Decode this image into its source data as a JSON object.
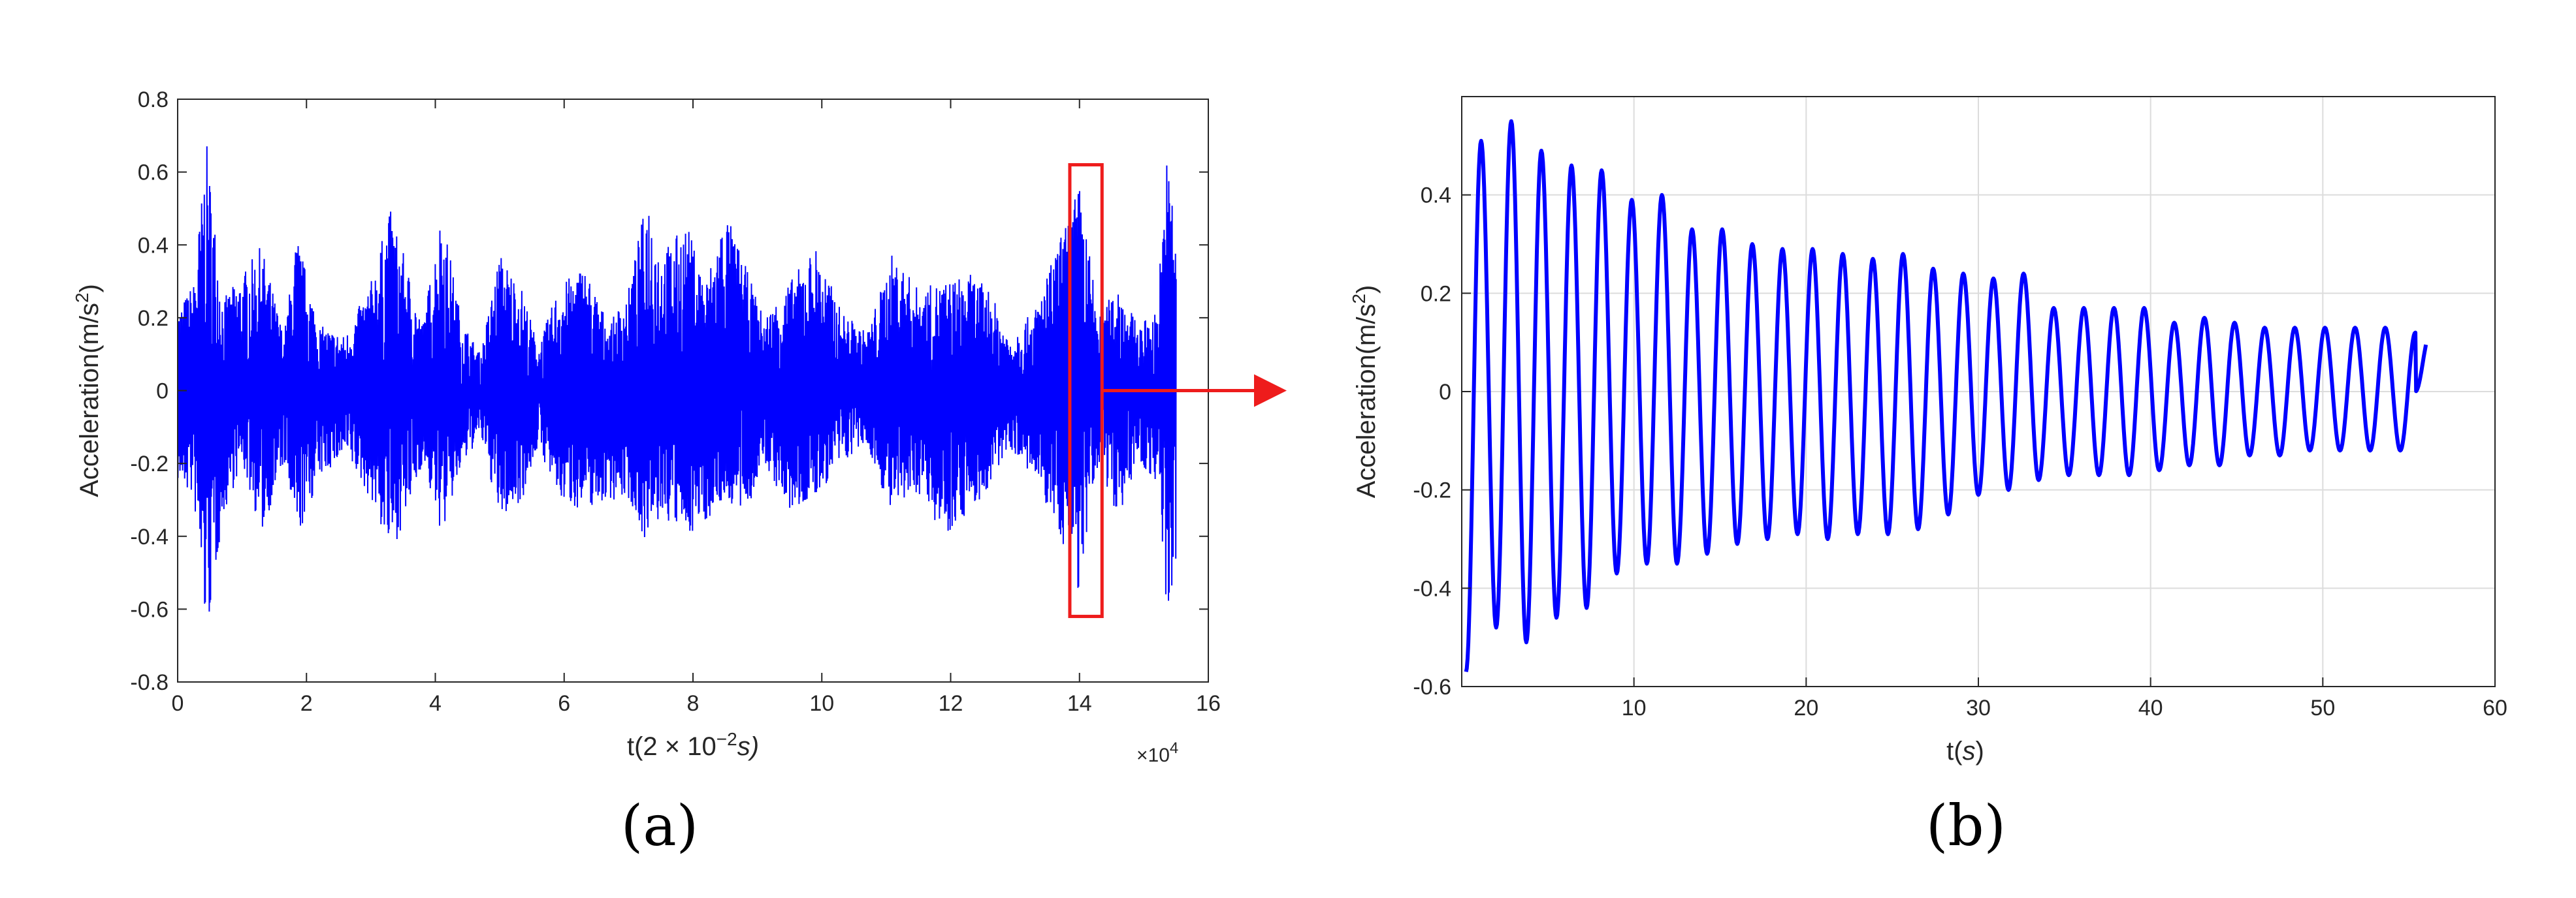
{
  "chart_data": [
    {
      "type": "line",
      "panel_label": "(a)",
      "xlabel": "t(2 × 10",
      "xlabel_exponent": "−2",
      "xlabel_suffix": "s)",
      "ylabel": "Acceleration(m/s",
      "ylabel_exponent": "2",
      "ylabel_suffix": ")",
      "x_multiplier": "×10",
      "x_multiplier_exponent": "4",
      "xlim": [
        0,
        16
      ],
      "ylim": [
        -0.8,
        0.8
      ],
      "xticks": [
        "0",
        "2",
        "4",
        "6",
        "8",
        "10",
        "12",
        "14",
        "16"
      ],
      "yticks": [
        "-0.8",
        "-0.6",
        "-0.4",
        "-0.2",
        "0",
        "0.2",
        "0.4",
        "0.6",
        "0.8"
      ],
      "grid": false,
      "series": [
        {
          "color": "#0000ff",
          "envelope": {
            "x": [
              0,
              0.25,
              0.45,
              0.7,
              1.0,
              1.3,
              1.65,
              1.85,
              2.2,
              2.6,
              3.0,
              3.3,
              3.55,
              3.8,
              4.1,
              4.4,
              4.7,
              5.0,
              5.35,
              5.6,
              5.9,
              6.3,
              6.7,
              7.0,
              7.3,
              7.5,
              7.9,
              8.2,
              8.5,
              8.8,
              9.1,
              9.5,
              9.9,
              10.3,
              10.7,
              11.1,
              11.5,
              11.9,
              12.3,
              12.6,
              12.9,
              13.3,
              13.7,
              14.0,
              14.3,
              14.6,
              14.9,
              15.2,
              15.35,
              15.5
            ],
            "upper": [
              0.22,
              0.3,
              0.68,
              0.25,
              0.32,
              0.4,
              0.15,
              0.43,
              0.18,
              0.15,
              0.3,
              0.5,
              0.35,
              0.18,
              0.5,
              0.2,
              0.1,
              0.38,
              0.28,
              0.12,
              0.28,
              0.35,
              0.18,
              0.28,
              0.55,
              0.38,
              0.46,
              0.3,
              0.5,
              0.35,
              0.2,
              0.3,
              0.4,
              0.22,
              0.16,
              0.38,
              0.28,
              0.3,
              0.32,
              0.28,
              0.15,
              0.22,
              0.42,
              0.57,
              0.2,
              0.3,
              0.18,
              0.22,
              0.64,
              0.5
            ],
            "lower": [
              -0.25,
              -0.3,
              -0.69,
              -0.35,
              -0.2,
              -0.4,
              -0.2,
              -0.42,
              -0.24,
              -0.18,
              -0.3,
              -0.45,
              -0.35,
              -0.2,
              -0.4,
              -0.22,
              -0.12,
              -0.36,
              -0.3,
              -0.15,
              -0.3,
              -0.33,
              -0.3,
              -0.3,
              -0.43,
              -0.35,
              -0.4,
              -0.36,
              -0.3,
              -0.35,
              -0.2,
              -0.34,
              -0.3,
              -0.2,
              -0.15,
              -0.35,
              -0.28,
              -0.4,
              -0.33,
              -0.28,
              -0.15,
              -0.25,
              -0.4,
              -0.56,
              -0.2,
              -0.35,
              -0.2,
              -0.25,
              -0.64,
              -0.5
            ]
          }
        }
      ],
      "highlight_box": {
        "x_range": [
          13.85,
          14.35
        ],
        "y_range": [
          -0.62,
          0.62
        ],
        "color": "#ee1c1c"
      }
    },
    {
      "type": "line",
      "panel_label": "(b)",
      "xlabel": "t(",
      "xlabel_var": "s",
      "xlabel_suffix": ")",
      "ylabel": "Acceleration(m/s",
      "ylabel_exponent": "2",
      "ylabel_suffix": ")",
      "xlim": [
        0,
        60
      ],
      "ylim": [
        -0.6,
        0.6
      ],
      "xticks": [
        "10",
        "20",
        "30",
        "40",
        "50",
        "60"
      ],
      "yticks": [
        "-0.6",
        "-0.4",
        "-0.2",
        "0",
        "0.2",
        "0.4"
      ],
      "grid": true,
      "series": [
        {
          "color": "#0000ff",
          "x_end": 56,
          "period": 1.75,
          "peaks": [
            0.51,
            0.55,
            0.49,
            0.46,
            0.45,
            0.39,
            0.4,
            0.33,
            0.33,
            0.3,
            0.29,
            0.29,
            0.28,
            0.27,
            0.28,
            0.25,
            0.24,
            0.23,
            0.24,
            0.17,
            0.17,
            0.17,
            0.17,
            0.14,
            0.15,
            0.14,
            0.13,
            0.13,
            0.13,
            0.13,
            0.13,
            0.12
          ],
          "troughs": [
            -0.57,
            -0.48,
            -0.51,
            -0.46,
            -0.44,
            -0.37,
            -0.35,
            -0.35,
            -0.33,
            -0.31,
            -0.3,
            -0.29,
            -0.3,
            -0.29,
            -0.29,
            -0.28,
            -0.25,
            -0.21,
            -0.2,
            -0.18,
            -0.17,
            -0.17,
            -0.17,
            -0.16,
            -0.15,
            -0.15,
            -0.13,
            -0.13,
            -0.12,
            -0.12,
            -0.12,
            -0.12
          ]
        }
      ]
    }
  ]
}
